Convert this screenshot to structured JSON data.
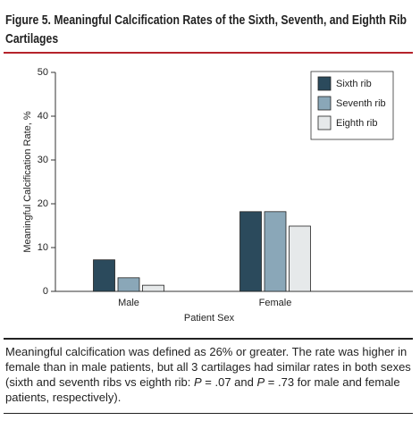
{
  "chart_data": {
    "type": "bar",
    "title": "Figure 5. Meaningful Calcification Rates of the Sixth, Seventh, and Eighth Rib Cartilages",
    "x_label": "Patient Sex",
    "y_label": "Meaningful Calcification Rate, %",
    "categories": [
      "Male",
      "Female"
    ],
    "series": [
      {
        "name": "Sixth rib",
        "color": "#2b4a5c",
        "values": [
          7.2,
          18.2
        ]
      },
      {
        "name": "Seventh rib",
        "color": "#8aa7b8",
        "values": [
          3.1,
          18.2
        ]
      },
      {
        "name": "Eighth rib",
        "color": "#e6e9ea",
        "values": [
          1.4,
          14.9
        ]
      }
    ],
    "ylim": [
      0,
      50
    ],
    "yticks": [
      0,
      10,
      20,
      30,
      40,
      50
    ],
    "grid": false,
    "legend": "upper right",
    "caption": [
      "Meaningful calcification was defined as 26% or greater. The rate was higher in female than in male patients, but all 3 cartilages had similar rates in both sexes (sixth and seventh ribs vs eighth rib: ",
      "P",
      " = .07 and ",
      "P",
      " = .73 for male and female patients, respectively)."
    ]
  }
}
